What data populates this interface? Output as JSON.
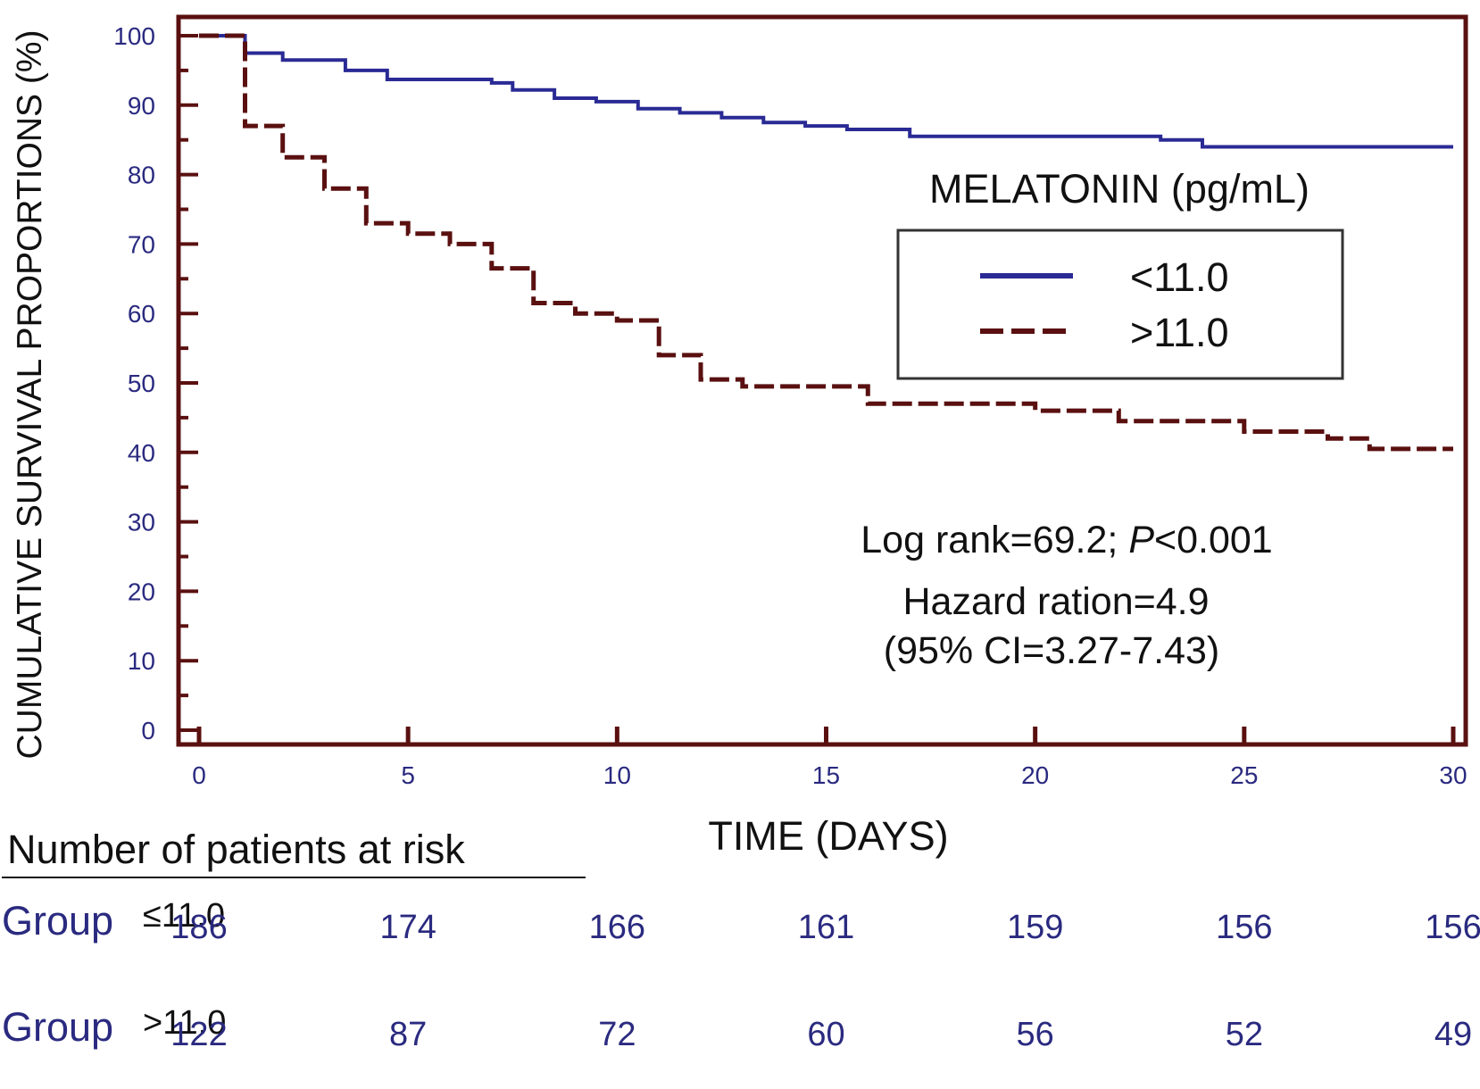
{
  "colors": {
    "frame": "#5a1010",
    "series_low": "#2a2a95",
    "series_high": "#5a1010",
    "axis_text": "#2a2a80",
    "text": "#111111"
  },
  "chart_data": {
    "type": "line",
    "step": true,
    "title": "",
    "xlabel": "TIME (DAYS)",
    "ylabel": "CUMULATIVE SURVIVAL PROPORTIONS (%)",
    "xlim": [
      0,
      30
    ],
    "ylim": [
      0,
      100
    ],
    "x_ticks": [
      0,
      5,
      10,
      15,
      20,
      25,
      30
    ],
    "y_ticks": [
      0,
      10,
      20,
      30,
      40,
      50,
      60,
      70,
      80,
      90,
      100
    ],
    "legend": {
      "title": "MELATONIN (pg/mL)",
      "position": "upper-right"
    },
    "series": [
      {
        "name": "<11.0",
        "style": "solid",
        "points": [
          [
            0,
            100
          ],
          [
            1.1,
            100
          ],
          [
            1.1,
            97.5
          ],
          [
            2,
            97.5
          ],
          [
            2,
            96.5
          ],
          [
            3.5,
            96.5
          ],
          [
            3.5,
            95
          ],
          [
            4.5,
            95
          ],
          [
            4.5,
            93.7
          ],
          [
            7,
            93.7
          ],
          [
            7,
            93.2
          ],
          [
            7.5,
            93.2
          ],
          [
            7.5,
            92.2
          ],
          [
            8.5,
            92.2
          ],
          [
            8.5,
            91
          ],
          [
            9.5,
            91
          ],
          [
            9.5,
            90.5
          ],
          [
            10.5,
            90.5
          ],
          [
            10.5,
            89.5
          ],
          [
            11.5,
            89.5
          ],
          [
            11.5,
            88.9
          ],
          [
            12.5,
            88.9
          ],
          [
            12.5,
            88.2
          ],
          [
            13.5,
            88.2
          ],
          [
            13.5,
            87.5
          ],
          [
            14.5,
            87.5
          ],
          [
            14.5,
            87
          ],
          [
            15.5,
            87
          ],
          [
            15.5,
            86.5
          ],
          [
            17,
            86.5
          ],
          [
            17,
            85.5
          ],
          [
            23,
            85.5
          ],
          [
            23,
            85
          ],
          [
            24,
            85
          ],
          [
            24,
            84
          ],
          [
            30,
            84
          ]
        ]
      },
      {
        "name": ">11.0",
        "style": "dashed",
        "points": [
          [
            0,
            100
          ],
          [
            1.1,
            100
          ],
          [
            1.1,
            87
          ],
          [
            2,
            87
          ],
          [
            2,
            82.5
          ],
          [
            3,
            82.5
          ],
          [
            3,
            78
          ],
          [
            4,
            78
          ],
          [
            4,
            73
          ],
          [
            5,
            73
          ],
          [
            5,
            71.5
          ],
          [
            6,
            71.5
          ],
          [
            6,
            70
          ],
          [
            7,
            70
          ],
          [
            7,
            66.5
          ],
          [
            8,
            66.5
          ],
          [
            8,
            61.5
          ],
          [
            9,
            61.5
          ],
          [
            9,
            60
          ],
          [
            10,
            60
          ],
          [
            10,
            59
          ],
          [
            11,
            59
          ],
          [
            11,
            54
          ],
          [
            12,
            54
          ],
          [
            12,
            50.5
          ],
          [
            13,
            50.5
          ],
          [
            13,
            49.5
          ],
          [
            16,
            49.5
          ],
          [
            16,
            47
          ],
          [
            20,
            47
          ],
          [
            20,
            46
          ],
          [
            22,
            46
          ],
          [
            22,
            44.5
          ],
          [
            25,
            44.5
          ],
          [
            25,
            43
          ],
          [
            27,
            43
          ],
          [
            27,
            42
          ],
          [
            28,
            42
          ],
          [
            28,
            40.5
          ],
          [
            30,
            40.5
          ]
        ]
      }
    ],
    "annotations": {
      "logrank_prefix": "Log rank=69.2; ",
      "p_symbol": "P",
      "p_value": "<0.001",
      "hazard": "Hazard ration=4.9",
      "ci": "(95% CI=3.27-7.43)"
    }
  },
  "risk_table": {
    "title": "Number of patients at risk",
    "groups": [
      {
        "label": "Group",
        "threshold": "≤11.0",
        "values": [
          "186",
          "174",
          "166",
          "161",
          "159",
          "156",
          "156"
        ]
      },
      {
        "label": "Group",
        "threshold": ">11.0",
        "values": [
          "122",
          "87",
          "72",
          "60",
          "56",
          "52",
          "49"
        ]
      }
    ]
  }
}
